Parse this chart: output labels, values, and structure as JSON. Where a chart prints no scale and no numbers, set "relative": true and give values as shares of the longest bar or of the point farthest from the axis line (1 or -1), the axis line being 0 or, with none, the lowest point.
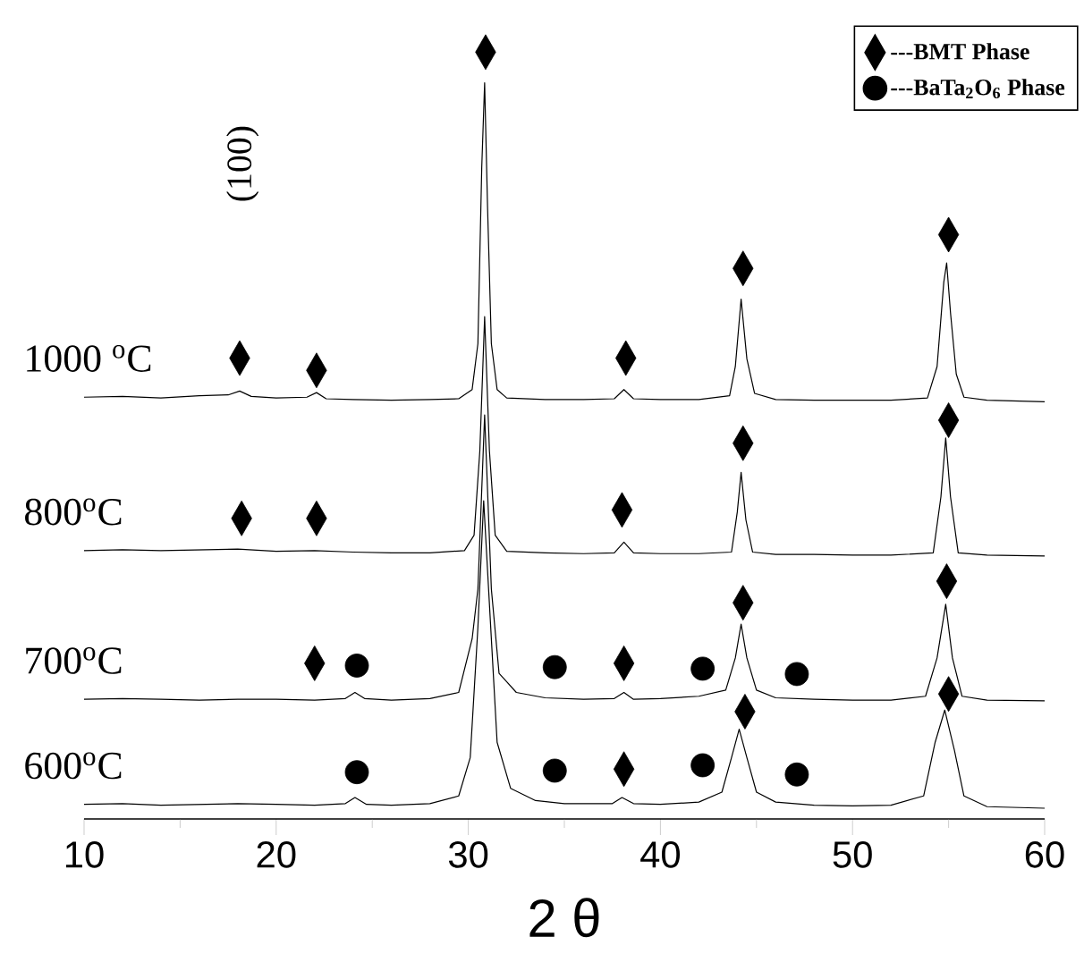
{
  "chart_data": {
    "type": "line",
    "relative": true,
    "xlabel": "2 θ",
    "xlim": [
      10,
      60
    ],
    "xticks": [
      10,
      {
        "value": 15,
        "label": null
      },
      20,
      {
        "value": 25,
        "label": null
      },
      30,
      {
        "value": 35,
        "label": null
      },
      40,
      {
        "value": 45,
        "label": null
      },
      50,
      {
        "value": 55,
        "label": null
      },
      60
    ],
    "legend": "top right",
    "annotations": [
      "(100)"
    ],
    "series": [
      {
        "name": "1000 $^{o}$C",
        "color": "#000000",
        "x": [
          10,
          12,
          14,
          16,
          17.5,
          18.1,
          18.7,
          20,
          21.6,
          22.1,
          22.6,
          24,
          26,
          28,
          29.5,
          30.2,
          30.5,
          30.7,
          30.85,
          31.0,
          31.2,
          31.5,
          32,
          34,
          36,
          37.6,
          38.1,
          38.6,
          40,
          42,
          43.6,
          43.9,
          44.2,
          44.5,
          44.9,
          46,
          48,
          50,
          52,
          53.9,
          54.4,
          54.75,
          54.9,
          55.1,
          55.4,
          55.8,
          57,
          60
        ],
        "values": [
          0.55,
          0.551,
          0.549,
          0.552,
          0.553,
          0.558,
          0.551,
          0.549,
          0.55,
          0.556,
          0.548,
          0.547,
          0.546,
          0.547,
          0.548,
          0.56,
          0.62,
          0.85,
          0.96,
          0.8,
          0.62,
          0.56,
          0.549,
          0.547,
          0.547,
          0.548,
          0.56,
          0.548,
          0.547,
          0.547,
          0.552,
          0.59,
          0.678,
          0.6,
          0.555,
          0.547,
          0.546,
          0.546,
          0.546,
          0.549,
          0.59,
          0.7,
          0.725,
          0.66,
          0.58,
          0.55,
          0.546,
          0.544
        ]
      },
      {
        "name": "800$^{o}$C",
        "color": "#000000",
        "x": [
          10,
          12,
          14,
          16,
          18,
          20,
          22,
          24,
          26,
          28,
          29.8,
          30.3,
          30.6,
          30.85,
          31.1,
          31.4,
          32,
          34,
          36,
          37.6,
          38.1,
          38.6,
          40,
          42,
          43.7,
          44.0,
          44.2,
          44.45,
          44.8,
          46,
          48,
          50,
          52,
          54.2,
          54.6,
          54.85,
          55.1,
          55.5,
          57,
          60
        ],
        "values": [
          0.35,
          0.351,
          0.35,
          0.351,
          0.352,
          0.349,
          0.35,
          0.348,
          0.347,
          0.347,
          0.35,
          0.37,
          0.48,
          0.655,
          0.48,
          0.37,
          0.349,
          0.347,
          0.346,
          0.347,
          0.361,
          0.347,
          0.346,
          0.346,
          0.348,
          0.4,
          0.452,
          0.39,
          0.348,
          0.345,
          0.345,
          0.344,
          0.344,
          0.347,
          0.42,
          0.497,
          0.42,
          0.347,
          0.344,
          0.343
        ]
      },
      {
        "name": "700$^{o}$C",
        "color": "#000000",
        "x": [
          10,
          12,
          14,
          16,
          18,
          20,
          22,
          23.6,
          24.1,
          24.6,
          26,
          28,
          29.5,
          30.2,
          30.5,
          30.85,
          31.2,
          31.6,
          32.5,
          34,
          36,
          37.6,
          38.1,
          38.6,
          40,
          42,
          43.4,
          43.9,
          44.2,
          44.5,
          45,
          46,
          48,
          50,
          52,
          53.8,
          54.4,
          54.85,
          55.2,
          55.7,
          57,
          60
        ],
        "values": [
          0.156,
          0.157,
          0.156,
          0.155,
          0.156,
          0.156,
          0.155,
          0.157,
          0.165,
          0.157,
          0.155,
          0.157,
          0.165,
          0.235,
          0.3,
          0.527,
          0.3,
          0.19,
          0.165,
          0.158,
          0.156,
          0.157,
          0.165,
          0.156,
          0.157,
          0.16,
          0.168,
          0.21,
          0.254,
          0.21,
          0.168,
          0.158,
          0.156,
          0.155,
          0.155,
          0.16,
          0.21,
          0.28,
          0.21,
          0.16,
          0.155,
          0.154
        ]
      },
      {
        "name": "600$^{o}$C",
        "color": "#000000",
        "x": [
          10,
          12,
          14,
          16,
          18,
          20,
          22,
          23.6,
          24.1,
          24.7,
          26,
          28,
          29.5,
          30.1,
          30.5,
          30.8,
          31.1,
          31.5,
          32.2,
          33.5,
          35,
          37.5,
          38.0,
          38.6,
          40,
          42,
          43.2,
          43.7,
          44.1,
          44.5,
          45,
          46,
          48,
          50,
          52,
          53.7,
          54.3,
          54.8,
          55.3,
          55.8,
          57,
          60
        ],
        "values": [
          0.019,
          0.02,
          0.018,
          0.019,
          0.02,
          0.019,
          0.018,
          0.02,
          0.028,
          0.019,
          0.018,
          0.02,
          0.03,
          0.08,
          0.25,
          0.415,
          0.28,
          0.1,
          0.04,
          0.024,
          0.02,
          0.02,
          0.028,
          0.02,
          0.019,
          0.022,
          0.035,
          0.08,
          0.117,
          0.08,
          0.035,
          0.022,
          0.018,
          0.017,
          0.018,
          0.03,
          0.1,
          0.142,
          0.09,
          0.03,
          0.016,
          0.014
        ]
      },
      {
        "type": "scatter",
        "name": "---BMT Phase",
        "color": "#000000",
        "marker": "diamond",
        "x": [
          18.1,
          22.1,
          30.9,
          38.2,
          44.3,
          55.0,
          18.2,
          22.1,
          38.0,
          44.3,
          55.0,
          22.0,
          38.1,
          44.3,
          54.9,
          38.1,
          44.4,
          55.0
        ],
        "values": [
          0.601,
          0.585,
          1.0,
          0.601,
          0.718,
          0.762,
          0.392,
          0.392,
          0.403,
          0.49,
          0.52,
          0.203,
          0.203,
          0.282,
          0.31,
          0.065,
          0.14,
          0.163
        ]
      },
      {
        "type": "scatter",
        "name": "---BaTa$_{2}$O$_{6}$ Phase",
        "color": "#000000",
        "marker": "circle",
        "x": [
          24.2,
          34.5,
          42.2,
          47.1,
          24.2,
          34.5,
          42.2,
          47.1
        ],
        "values": [
          0.2,
          0.198,
          0.196,
          0.189,
          0.061,
          0.063,
          0.07,
          0.058
        ]
      }
    ]
  }
}
